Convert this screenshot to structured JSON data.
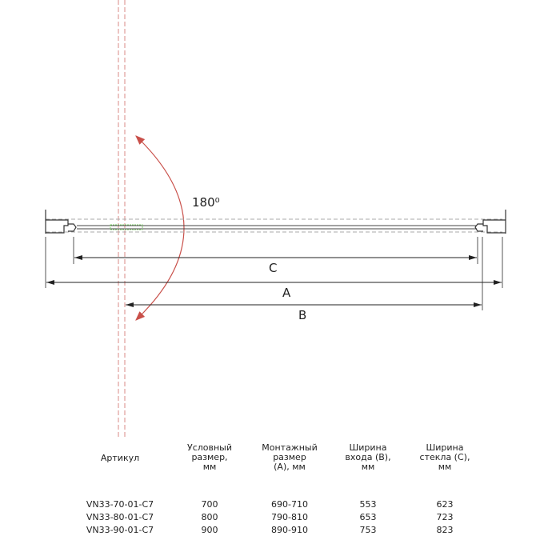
{
  "diagram": {
    "angle_label": "180⁰",
    "dim_c": "C",
    "dim_a": "A",
    "dim_b": "B",
    "colors": {
      "swing": "#c9504a",
      "axis": "#d98a84",
      "lines": "#333333",
      "seal": "#7fcf6a"
    }
  },
  "table": {
    "headers": [
      "Артикул",
      "Условный\nразмер,\nмм",
      "Монтажный\nразмер\n(A), мм",
      "Ширина\nвхода (B),\nмм",
      "Ширина\nстекла (C),\nмм"
    ],
    "rows": [
      [
        "VN33-70-01-C7",
        "700",
        "690-710",
        "553",
        "623"
      ],
      [
        "VN33-80-01-C7",
        "800",
        "790-810",
        "653",
        "723"
      ],
      [
        "VN33-90-01-C7",
        "900",
        "890-910",
        "753",
        "823"
      ]
    ]
  }
}
